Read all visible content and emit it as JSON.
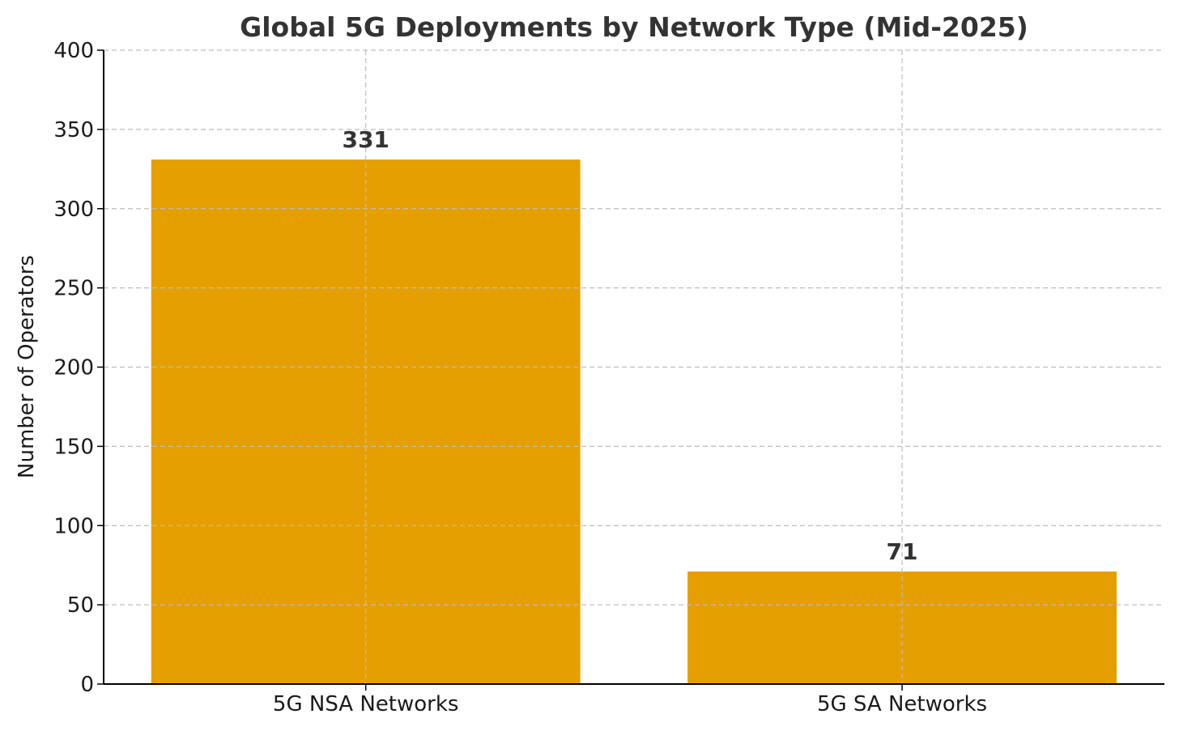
{
  "chart_data": {
    "type": "bar",
    "title": "Global 5G Deployments by Network Type (Mid-2025)",
    "xlabel": "",
    "ylabel": "Number of Operators",
    "categories": [
      "5G NSA Networks",
      "5G SA Networks"
    ],
    "values": [
      331,
      71
    ],
    "data_labels": [
      "331",
      "71"
    ],
    "ylim": [
      0,
      400
    ],
    "yticks": [
      0,
      50,
      100,
      150,
      200,
      250,
      300,
      350,
      400
    ],
    "ytick_labels": [
      "0",
      "50",
      "100",
      "150",
      "200",
      "250",
      "300",
      "350",
      "400"
    ],
    "grid": true,
    "bar_color": "#E69F00"
  }
}
